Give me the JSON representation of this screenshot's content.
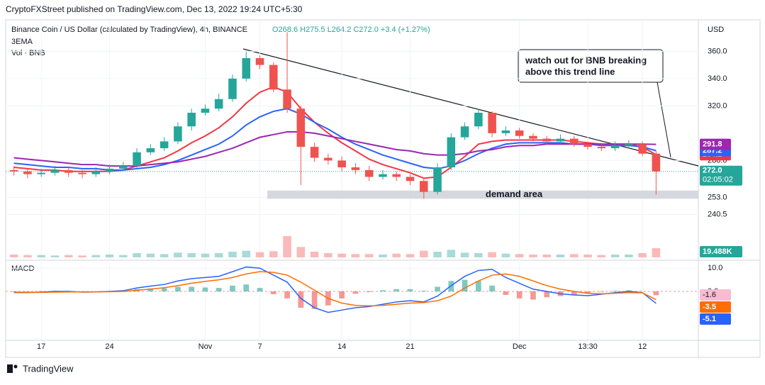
{
  "header": {
    "published": "CryptoFXStreet published on TradingView.com, Dec 13, 2022 19:24 UTC+5:30",
    "symbol": "Binance Coin / US Dollar (calculated by TradingView), 4h, BINANCE",
    "ohlc": "O268.6 H275.5 L264.2 C272.0 +3.4 (+1.27%)",
    "indicator": "3EMA",
    "volume_label": "Vol · BNB",
    "currency": "USD"
  },
  "footer": {
    "brand": "TradingView"
  },
  "annotation": [
    "watch out for BNB breaking",
    "above this trend line"
  ],
  "chart_data": [
    {
      "type": "candlestick",
      "categories": [
        null,
        null,
        "17",
        null,
        null,
        null,
        null,
        "24",
        null,
        null,
        null,
        null,
        null,
        null,
        "Nov",
        null,
        null,
        null,
        "7",
        null,
        null,
        null,
        null,
        null,
        "14",
        null,
        null,
        null,
        null,
        "21",
        null,
        null,
        null,
        null,
        null,
        null,
        null,
        "Dec",
        null,
        null,
        null,
        null,
        "13:30",
        null,
        null,
        null,
        "12",
        null
      ],
      "open": [
        273,
        272,
        270,
        271,
        273,
        271,
        270,
        272,
        274,
        276,
        286,
        289,
        294,
        305,
        315,
        318,
        325,
        340,
        355,
        350,
        332,
        318,
        290,
        282,
        280,
        275,
        273,
        268,
        270,
        268,
        265,
        257,
        275,
        297,
        305,
        315,
        300,
        302,
        298,
        296,
        294,
        296,
        292,
        290,
        289,
        291,
        292,
        285
      ],
      "high": [
        276,
        274,
        274,
        276,
        275,
        273,
        275,
        277,
        279,
        289,
        292,
        297,
        308,
        318,
        321,
        329,
        343,
        360,
        357,
        352,
        374,
        320,
        293,
        285,
        283,
        278,
        276,
        273,
        272,
        270,
        267,
        278,
        300,
        308,
        318,
        316,
        305,
        304,
        300,
        298,
        299,
        298,
        294,
        292,
        294,
        295,
        294,
        287
      ],
      "low": [
        269,
        267,
        268,
        269,
        268,
        267,
        268,
        270,
        272,
        274,
        284,
        287,
        292,
        302,
        313,
        316,
        323,
        338,
        347,
        330,
        315,
        262,
        279,
        277,
        272,
        270,
        265,
        266,
        265,
        262,
        252,
        255,
        273,
        295,
        303,
        297,
        298,
        296,
        294,
        292,
        292,
        290,
        288,
        287,
        287,
        289,
        283,
        255
      ],
      "close": [
        272,
        270,
        271,
        273,
        271,
        270,
        272,
        274,
        276,
        286,
        289,
        294,
        305,
        315,
        318,
        325,
        340,
        355,
        350,
        332,
        318,
        290,
        282,
        280,
        275,
        273,
        268,
        270,
        268,
        265,
        257,
        275,
        297,
        305,
        315,
        300,
        302,
        298,
        296,
        294,
        296,
        292,
        290,
        289,
        291,
        292,
        285,
        272
      ],
      "up_color": "#26a69a",
      "down_color": "#ef5350",
      "lines": [
        {
          "color": "#f23645",
          "values": [
            275,
            274,
            273,
            273,
            272,
            272,
            272,
            272,
            273,
            276,
            279,
            282,
            287,
            293,
            298,
            304,
            312,
            322,
            330,
            334,
            330,
            318,
            308,
            300,
            293,
            287,
            281,
            277,
            274,
            271,
            267,
            268,
            275,
            283,
            292,
            294,
            295,
            295,
            295,
            295,
            295,
            294,
            293,
            292,
            292,
            292,
            290,
            284.2
          ]
        },
        {
          "color": "#2962ff",
          "values": [
            278,
            277,
            276,
            275,
            275,
            274,
            274,
            273,
            273,
            274,
            275,
            277,
            280,
            284,
            288,
            292,
            298,
            306,
            312,
            316,
            318,
            314,
            308,
            303,
            297,
            292,
            288,
            284,
            281,
            278,
            275,
            274,
            276,
            280,
            285,
            289,
            292,
            293,
            293,
            293,
            293,
            292,
            292,
            291,
            291,
            291,
            290,
            287.2
          ]
        },
        {
          "color": "#9c27b0",
          "values": [
            282,
            281,
            280,
            279,
            278,
            277,
            277,
            276,
            276,
            276,
            277,
            278,
            279,
            281,
            283,
            286,
            289,
            293,
            297,
            299,
            301,
            301,
            300,
            298,
            296,
            294,
            292,
            290,
            288,
            287,
            285,
            284,
            284,
            285,
            287,
            288,
            290,
            291,
            291,
            292,
            292,
            292,
            292,
            292,
            292,
            292,
            292,
            291.8
          ]
        }
      ],
      "price_tag": {
        "value": 272,
        "label": "272.0"
      },
      "countdown": "02:05:02",
      "demand_area": {
        "label": "demand area",
        "range": [
          252,
          258
        ]
      },
      "volume": {
        "values": [
          6,
          5,
          5,
          4,
          5,
          4,
          5,
          6,
          5,
          9,
          8,
          7,
          10,
          9,
          8,
          9,
          12,
          14,
          11,
          13,
          45,
          22,
          12,
          9,
          8,
          7,
          7,
          6,
          8,
          7,
          14,
          12,
          16,
          10,
          9,
          11,
          8,
          7,
          6,
          6,
          6,
          7,
          6,
          5,
          6,
          6,
          9,
          19.488
        ],
        "last_label": "19.488K",
        "color": "#26a69a",
        "down_color": "#ef5350",
        "vlim": [
          0,
          60
        ]
      },
      "ylim": [
        208,
        382
      ],
      "yticks": [
        {
          "value": 240.5,
          "label": "240.5"
        },
        {
          "value": 253,
          "label": "253.0"
        },
        {
          "value": 280,
          "label": "280.0"
        },
        {
          "value": 320,
          "label": "320.0"
        },
        {
          "value": 340,
          "label": "340.0"
        },
        {
          "value": 360,
          "label": "360.0"
        }
      ],
      "grid": true
    },
    {
      "type": "macd",
      "title": "MACD",
      "series": [
        {
          "color": "#2962ff",
          "values": [
            -0.5,
            -0.5,
            -0.3,
            0,
            0,
            -0.3,
            -0.2,
            0,
            0.3,
            1.5,
            2.3,
            3,
            4.5,
            5.5,
            6,
            6.5,
            8.5,
            10.5,
            10,
            7,
            4,
            -3,
            -7,
            -9,
            -8,
            -7,
            -6.5,
            -5.5,
            -4.5,
            -4,
            -4.5,
            -2,
            2.5,
            6.5,
            9,
            9.5,
            6,
            3.5,
            1,
            0,
            -1,
            -1.5,
            -1.8,
            -1.2,
            -0.5,
            0,
            -0.5,
            -5.1
          ]
        },
        {
          "color": "#ff6d00",
          "values": [
            -0.3,
            -0.4,
            -0.4,
            -0.3,
            -0.2,
            -0.2,
            -0.2,
            -0.1,
            0,
            0.5,
            1,
            1.6,
            2.5,
            3.5,
            4.3,
            5,
            6,
            7.5,
            8.5,
            8.2,
            7,
            4,
            0.5,
            -3,
            -5,
            -6,
            -6.2,
            -6,
            -5.5,
            -5,
            -4.8,
            -4,
            -2,
            1.5,
            4.5,
            7,
            7.5,
            6.5,
            4.5,
            2.5,
            1,
            0,
            -0.8,
            -1,
            -0.8,
            -0.5,
            -0.6,
            -3.5
          ]
        }
      ],
      "histogram": {
        "up_color": "#26a69a",
        "down_color": "#ef5350",
        "values": [
          -0.2,
          -0.1,
          0.1,
          0.3,
          0.2,
          -0.1,
          0,
          0.1,
          0.3,
          1,
          1.3,
          1.4,
          2,
          2,
          1.7,
          1.5,
          2.5,
          3,
          1.5,
          -1.2,
          -3,
          -7,
          -7.5,
          -6,
          -3,
          -1,
          -0.3,
          0.5,
          1,
          1,
          0.3,
          2,
          4.5,
          5,
          4.5,
          2.5,
          -1.5,
          -3,
          -3.5,
          -2.5,
          -2,
          -1.5,
          -1,
          -0.2,
          0.3,
          0.5,
          0.1,
          -1.6
        ]
      },
      "ylim": [
        -21,
        12.5
      ],
      "yticks": [
        {
          "value": 0,
          "label": "0.0"
        },
        {
          "value": 10,
          "label": "10.0"
        }
      ]
    }
  ]
}
